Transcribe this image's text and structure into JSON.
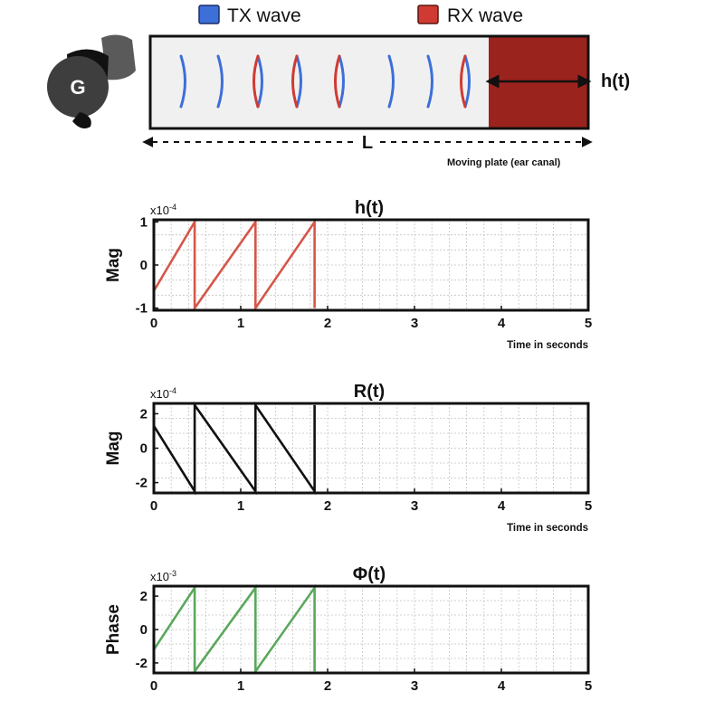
{
  "legend": {
    "tx_label": "TX wave",
    "rx_label": "RX wave",
    "tx_color": "#3d6fd9",
    "rx_color": "#cf3b32"
  },
  "device": {
    "icon": "earbud-icon",
    "logo_letter": "G"
  },
  "channel": {
    "length_label": "L",
    "displacement_label": "h(t)",
    "plate_caption": "Moving plate (ear canal)",
    "plate_color": "#9b231d",
    "waves": [
      "tx",
      "tx",
      "mixed",
      "mixed",
      "mixed",
      "tx",
      "tx",
      "mixed"
    ]
  },
  "chart_data": [
    {
      "type": "line",
      "title": "h(t)",
      "ylabel": "Mag",
      "xlabel": "Time in seconds",
      "exponent_label": "x10",
      "exponent": "-4",
      "xlim": [
        0,
        5
      ],
      "ylim": [
        -1.05,
        1.05
      ],
      "xticks": [
        "0",
        "1",
        "2",
        "3",
        "4",
        "5"
      ],
      "yticks": [
        {
          "value": 1,
          "label": "1"
        },
        {
          "value": 0,
          "label": "0"
        },
        {
          "value": -1,
          "label": "-1"
        }
      ],
      "grid": true,
      "color": "#d4574a",
      "series": [
        {
          "x": [
            0,
            0.47,
            0.47,
            1.17,
            1.17,
            1.85,
            1.85
          ],
          "y": [
            -0.6,
            1.0,
            -1.0,
            1.0,
            -1.0,
            1.0,
            -1.0
          ]
        }
      ]
    },
    {
      "type": "line",
      "title": "R(t)",
      "ylabel": "Mag",
      "xlabel": "Time in seconds",
      "exponent_label": "x10",
      "exponent": "-4",
      "xlim": [
        0,
        5
      ],
      "ylim": [
        -2.6,
        2.6
      ],
      "xticks": [
        "0",
        "1",
        "2",
        "3",
        "4",
        "5"
      ],
      "yticks": [
        {
          "value": 2,
          "label": "2"
        },
        {
          "value": 0,
          "label": "0"
        },
        {
          "value": -2,
          "label": "-2"
        }
      ],
      "grid": true,
      "color": "#111111",
      "series": [
        {
          "x": [
            0,
            0.47,
            0.47,
            1.17,
            1.17,
            1.85,
            1.85
          ],
          "y": [
            1.3,
            -2.5,
            2.5,
            -2.5,
            2.5,
            -2.5,
            2.5
          ]
        }
      ]
    },
    {
      "type": "line",
      "title": "Φ(t)",
      "ylabel": "Phase",
      "xlabel": "",
      "exponent_label": "x10",
      "exponent": "-3",
      "xlim": [
        0,
        5
      ],
      "ylim": [
        -2.6,
        2.6
      ],
      "xticks": [
        "0",
        "1",
        "2",
        "3",
        "4",
        "5"
      ],
      "yticks": [
        {
          "value": 2,
          "label": "2"
        },
        {
          "value": 0,
          "label": "0"
        },
        {
          "value": -2,
          "label": "-2"
        }
      ],
      "grid": true,
      "color": "#5aa85c",
      "series": [
        {
          "x": [
            0,
            0.47,
            0.47,
            1.17,
            1.17,
            1.85,
            1.85
          ],
          "y": [
            -1.2,
            2.5,
            -2.5,
            2.5,
            -2.5,
            2.5,
            -2.5
          ]
        }
      ]
    }
  ]
}
